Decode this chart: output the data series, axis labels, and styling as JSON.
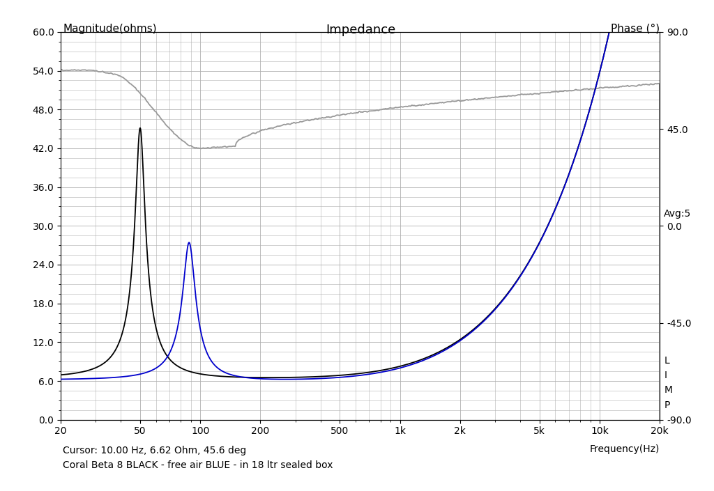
{
  "title": "Impedance",
  "ylabel_left": "Magnitude(ohms)",
  "ylabel_right": "Phase (°)",
  "xlabel": "Frequency(Hz)",
  "cursor_text": "Cursor: 10.00 Hz, 6.62 Ohm, 45.6 deg",
  "legend_text": "Coral Beta 8 BLACK - free air BLUE - in 18 ltr sealed box",
  "avg_text": "Avg:5",
  "ylim_left": [
    0.0,
    60.0
  ],
  "ylim_right": [
    -90.0,
    90.0
  ],
  "xlim": [
    20,
    20000
  ],
  "yticks_left": [
    0.0,
    6.0,
    12.0,
    18.0,
    24.0,
    30.0,
    36.0,
    42.0,
    48.0,
    54.0,
    60.0
  ],
  "yticks_right": [
    -90.0,
    -45.0,
    0.0,
    45.0,
    90.0
  ],
  "xticks": [
    20,
    50,
    100,
    200,
    500,
    1000,
    2000,
    5000,
    10000,
    20000
  ],
  "xtick_labels": [
    "20",
    "50",
    "100",
    "200",
    "500",
    "1k",
    "2k",
    "5k",
    "10k",
    "20k"
  ],
  "bg_color": "#ffffff",
  "grid_color": "#b0b0b0",
  "black_color": "#000000",
  "blue_color": "#0000cc",
  "gray_color": "#999999",
  "font_color": "#000000",
  "line_width": 1.3
}
